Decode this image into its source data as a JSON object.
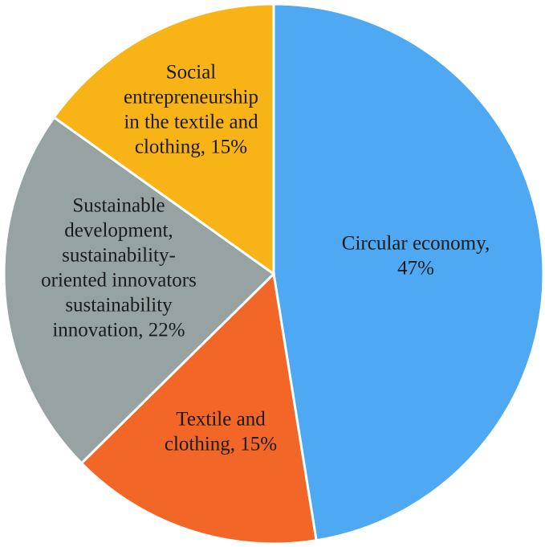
{
  "chart_data": {
    "type": "pie",
    "title": "",
    "start_angle_deg": 0,
    "direction": "clockwise",
    "slices": [
      {
        "label_lines": [
          "Circular economy,",
          "47%"
        ],
        "category": "Circular economy",
        "value": 47,
        "color": "#4ea8f2"
      },
      {
        "label_lines": [
          "Textile and",
          "clothing, 15%"
        ],
        "category": "Textile and clothing",
        "value": 15,
        "color": "#f26627"
      },
      {
        "label_lines": [
          "Sustainable",
          "development,",
          "sustainability-",
          "oriented innovators",
          "sustainability",
          "innovation, 22%"
        ],
        "category": "Sustainable development, sustainability-oriented innovators sustainability innovation",
        "value": 22,
        "color": "#97a3a2"
      },
      {
        "label_lines": [
          "Social",
          "entrepreneurship",
          "in the textile and",
          "clothing, 15%"
        ],
        "category": "Social entrepreneurship in the textile and clothing",
        "value": 15,
        "color": "#f8b316"
      }
    ]
  }
}
